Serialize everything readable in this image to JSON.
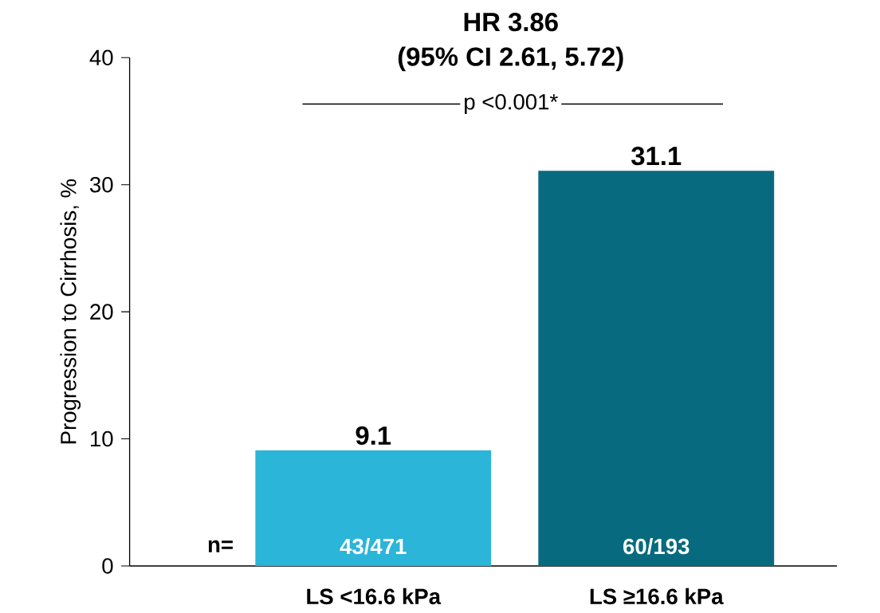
{
  "chart_data": {
    "type": "bar",
    "title": "HR 3.86",
    "subtitle": "(95% CI 2.61, 5.72)",
    "ylabel": "Progression to Cirrhosis, %",
    "categories": [
      "LS <16.6 kPa",
      "LS ≥16.6 kPa"
    ],
    "values": [
      9.1,
      31.1
    ],
    "colors": [
      "#2bb5d8",
      "#086a7e"
    ],
    "ylim": [
      0,
      40
    ],
    "yticks": [
      0,
      10,
      20,
      30,
      40
    ],
    "data_labels": true,
    "annotations": [
      "p <0.001*",
      "n=",
      "43/471",
      "60/193"
    ]
  }
}
